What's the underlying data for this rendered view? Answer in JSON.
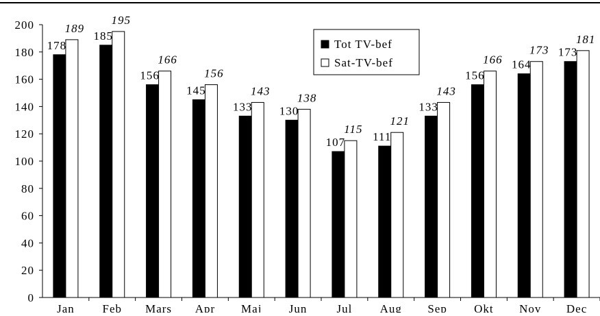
{
  "chart_data": {
    "type": "bar",
    "categories": [
      "Jan",
      "Feb",
      "Mars",
      "Apr",
      "Maj",
      "Jun",
      "Jul",
      "Aug",
      "Sep",
      "Okt",
      "Nov",
      "Dec"
    ],
    "series": [
      {
        "name": "Tot TV-bef",
        "values": [
          178,
          185,
          156,
          145,
          133,
          130,
          107,
          111,
          133,
          156,
          164,
          173
        ],
        "color": "#000000"
      },
      {
        "name": "Sat-TV-bef",
        "values": [
          189,
          195,
          166,
          156,
          143,
          138,
          115,
          121,
          143,
          166,
          173,
          181
        ],
        "color": "#ffffff"
      }
    ],
    "yticks": [
      0,
      20,
      40,
      60,
      80,
      100,
      120,
      140,
      160,
      180,
      200
    ],
    "ylim": [
      0,
      200
    ],
    "legend_position": "top-right",
    "grid": false
  }
}
